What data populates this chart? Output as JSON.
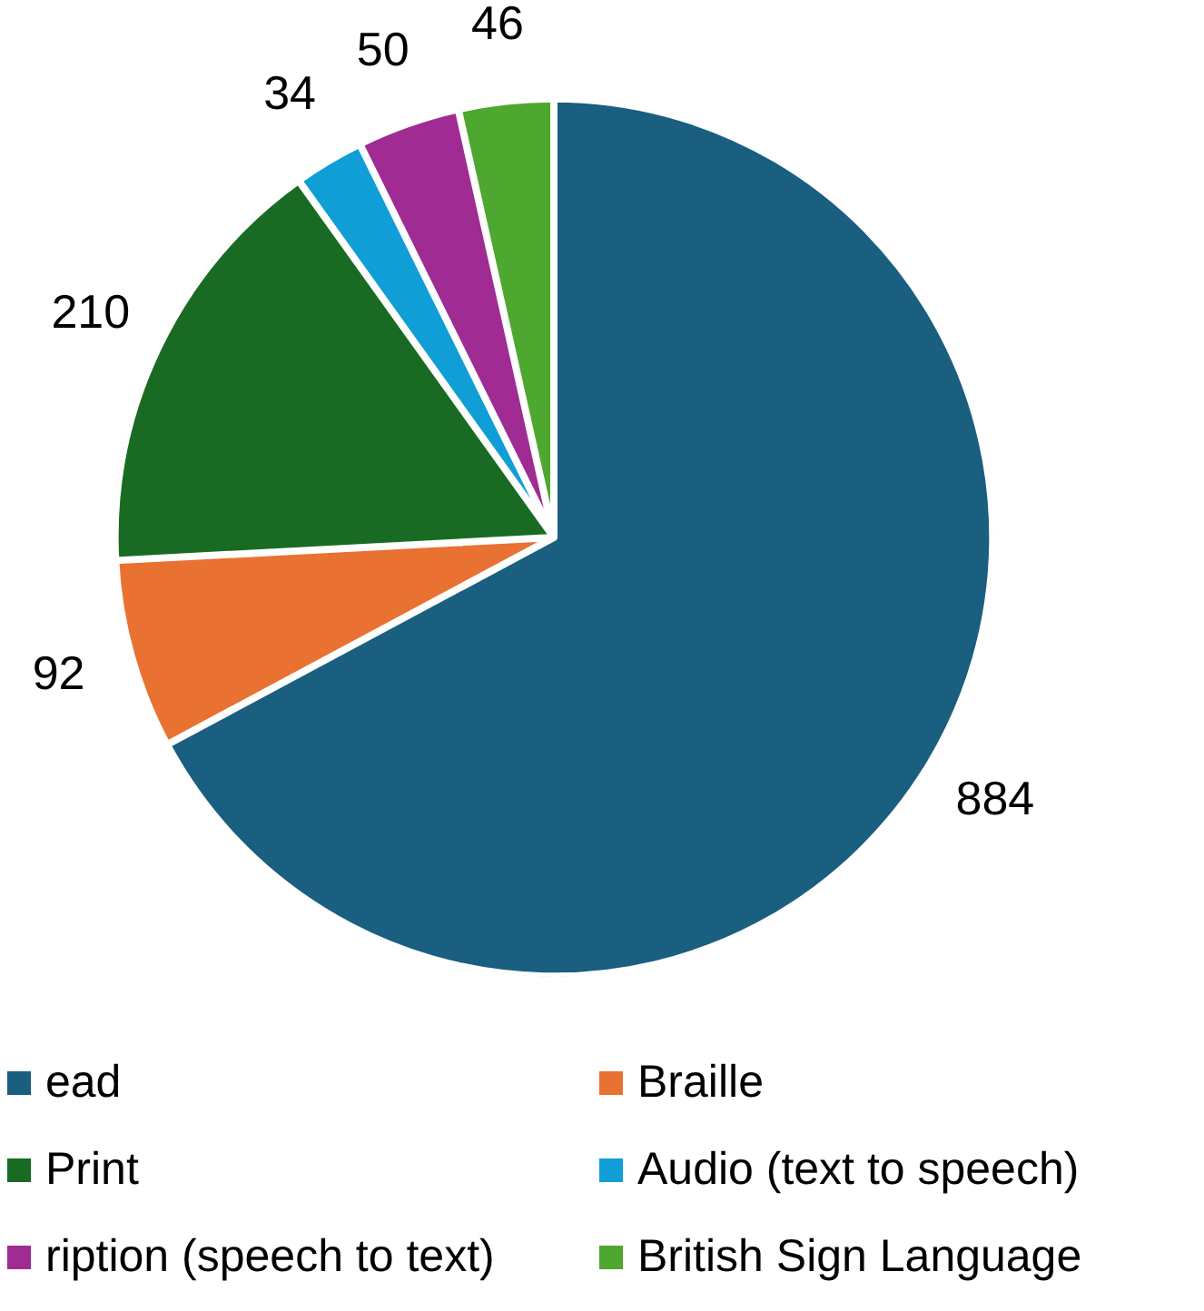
{
  "chart_data": {
    "type": "pie",
    "categories": [
      "ead",
      "Braille",
      "Print",
      "Audio (text to speech)",
      "ription (speech to text)",
      "British Sign Language"
    ],
    "values": [
      884,
      92,
      210,
      34,
      50,
      46
    ],
    "colors": [
      "#1a5e80",
      "#e97132",
      "#196b24",
      "#0f9ed5",
      "#a02b93",
      "#4ea72e"
    ],
    "data_labels": true,
    "legend": "bottom"
  }
}
